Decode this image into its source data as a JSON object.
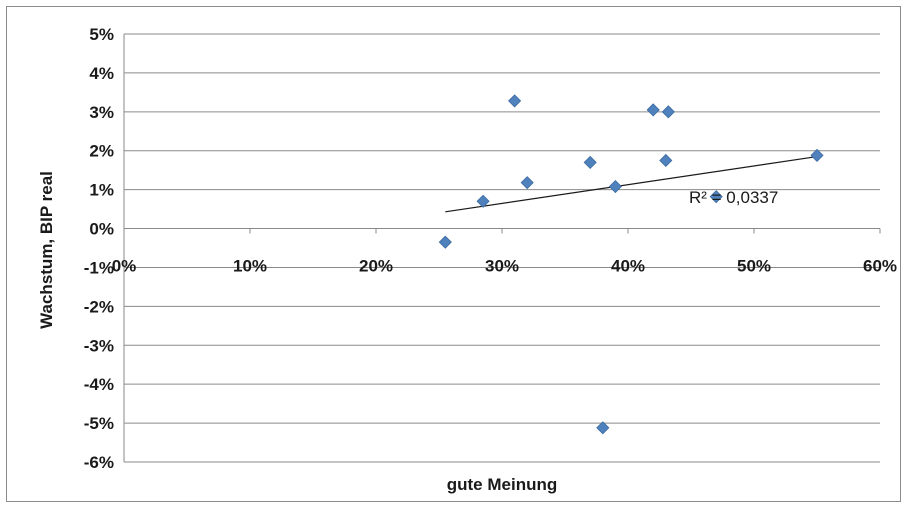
{
  "chart_data": {
    "type": "scatter",
    "title": "",
    "xlabel": "gute Meinung",
    "ylabel": "Wachstum, BIP real",
    "xlim": [
      0,
      0.6
    ],
    "ylim": [
      -0.06,
      0.05
    ],
    "x_ticks": [
      "0%",
      "10%",
      "20%",
      "30%",
      "40%",
      "50%",
      "60%"
    ],
    "y_ticks": [
      "5%",
      "4%",
      "3%",
      "2%",
      "1%",
      "0%",
      "-1%",
      "-2%",
      "-3%",
      "-4%",
      "-5%",
      "-6%"
    ],
    "grid": "horizontal",
    "marker_color": "#4f81bd",
    "points": [
      {
        "x": 0.255,
        "y": -0.0035
      },
      {
        "x": 0.285,
        "y": 0.007
      },
      {
        "x": 0.31,
        "y": 0.0328
      },
      {
        "x": 0.32,
        "y": 0.0118
      },
      {
        "x": 0.37,
        "y": 0.017
      },
      {
        "x": 0.38,
        "y": -0.0512
      },
      {
        "x": 0.39,
        "y": 0.0108
      },
      {
        "x": 0.42,
        "y": 0.0305
      },
      {
        "x": 0.432,
        "y": 0.03
      },
      {
        "x": 0.43,
        "y": 0.0175
      },
      {
        "x": 0.47,
        "y": 0.0082
      },
      {
        "x": 0.55,
        "y": 0.0188
      }
    ],
    "trendline": {
      "x": [
        0.255,
        0.55
      ],
      "y": [
        0.0043,
        0.0185
      ]
    },
    "annotation": "R² = 0,0337"
  }
}
